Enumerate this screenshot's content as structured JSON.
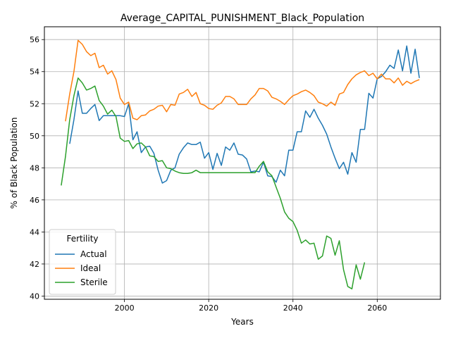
{
  "chart_data": {
    "type": "line",
    "title": "Average_CAPITAL_PUNISHMENT_Black_Population",
    "xlabel": "Years",
    "ylabel": "% of Black Population",
    "xlim": [
      1981,
      2075
    ],
    "ylim": [
      39.8,
      56.8
    ],
    "xticks": [
      2000,
      2020,
      2040,
      2060
    ],
    "yticks": [
      40,
      42,
      44,
      46,
      48,
      50,
      52,
      54,
      56
    ],
    "grid": true,
    "legend": {
      "title": "Fertility",
      "placement": "lower-left"
    },
    "series": [
      {
        "name": "Actual",
        "color": "#1f77b4",
        "x": [
          1987,
          1988,
          1989,
          1990,
          1991,
          1992,
          1993,
          1994,
          1995,
          1996,
          1997,
          1998,
          1999,
          2000,
          2001,
          2002,
          2003,
          2004,
          2005,
          2006,
          2007,
          2008,
          2009,
          2010,
          2011,
          2012,
          2013,
          2014,
          2015,
          2016,
          2017,
          2018,
          2019,
          2020,
          2021,
          2022,
          2023,
          2024,
          2025,
          2026,
          2027,
          2028,
          2029,
          2030,
          2031,
          2032,
          2033,
          2034,
          2035,
          2036,
          2037,
          2038,
          2039,
          2040,
          2041,
          2042,
          2043,
          2044,
          2045,
          2046,
          2047,
          2048,
          2049,
          2050,
          2051,
          2052,
          2053,
          2054,
          2055,
          2056,
          2057,
          2058,
          2059,
          2060,
          2061,
          2062,
          2063,
          2064,
          2065,
          2066,
          2067,
          2068,
          2069,
          2070
        ],
        "y": [
          49.5,
          51.0,
          52.8,
          51.4,
          51.4,
          51.7,
          51.95,
          50.95,
          51.25,
          51.25,
          51.25,
          51.25,
          51.25,
          51.2,
          52.0,
          49.75,
          50.25,
          48.95,
          49.3,
          49.35,
          48.9,
          47.85,
          47.05,
          47.2,
          47.85,
          48.0,
          48.85,
          49.25,
          49.55,
          49.45,
          49.45,
          49.6,
          48.6,
          48.95,
          47.9,
          48.9,
          48.15,
          49.3,
          49.1,
          49.55,
          48.85,
          48.8,
          48.55,
          47.75,
          47.8,
          47.75,
          48.35,
          47.5,
          47.45,
          47.1,
          47.85,
          47.5,
          49.1,
          49.1,
          50.25,
          50.25,
          51.55,
          51.15,
          51.65,
          51.1,
          50.65,
          50.1,
          49.3,
          48.6,
          47.95,
          48.35,
          47.6,
          48.95,
          48.35,
          50.4,
          50.4,
          52.65,
          52.35,
          53.55,
          53.7,
          54.0,
          54.4,
          54.2,
          55.35,
          54.05,
          55.6,
          53.9,
          55.4,
          53.6
        ]
      },
      {
        "name": "Ideal",
        "color": "#ff7f0e",
        "x": [
          1986,
          1987,
          1988,
          1989,
          1990,
          1991,
          1992,
          1993,
          1994,
          1995,
          1996,
          1997,
          1998,
          1999,
          2000,
          2001,
          2002,
          2003,
          2004,
          2005,
          2006,
          2007,
          2008,
          2009,
          2010,
          2011,
          2012,
          2013,
          2014,
          2015,
          2016,
          2017,
          2018,
          2019,
          2020,
          2021,
          2022,
          2023,
          2024,
          2025,
          2026,
          2027,
          2028,
          2029,
          2030,
          2031,
          2032,
          2033,
          2034,
          2035,
          2036,
          2037,
          2038,
          2039,
          2040,
          2041,
          2042,
          2043,
          2044,
          2045,
          2046,
          2047,
          2048,
          2049,
          2050,
          2051,
          2052,
          2053,
          2054,
          2055,
          2056,
          2057,
          2058,
          2059,
          2060,
          2061,
          2062,
          2063,
          2064,
          2065,
          2066,
          2067,
          2068,
          2069,
          2070
        ],
        "y": [
          50.9,
          52.6,
          54.0,
          55.95,
          55.7,
          55.25,
          55.0,
          55.15,
          54.25,
          54.4,
          53.85,
          54.05,
          53.5,
          52.35,
          51.95,
          52.1,
          51.1,
          51.0,
          51.25,
          51.3,
          51.55,
          51.65,
          51.85,
          51.9,
          51.5,
          51.95,
          51.9,
          52.6,
          52.7,
          52.9,
          52.45,
          52.7,
          52.0,
          51.9,
          51.7,
          51.65,
          51.9,
          52.05,
          52.45,
          52.45,
          52.3,
          51.95,
          51.95,
          51.95,
          52.3,
          52.55,
          52.95,
          52.95,
          52.8,
          52.4,
          52.3,
          52.15,
          51.95,
          52.25,
          52.5,
          52.6,
          52.75,
          52.85,
          52.7,
          52.5,
          52.1,
          52.0,
          51.85,
          52.1,
          51.9,
          52.6,
          52.7,
          53.2,
          53.55,
          53.8,
          53.95,
          54.05,
          53.75,
          53.9,
          53.55,
          53.85,
          53.55,
          53.55,
          53.3,
          53.6,
          53.15,
          53.4,
          53.25,
          53.4,
          53.5
        ]
      },
      {
        "name": "Sterile",
        "color": "#2ca02c",
        "x": [
          1985,
          1986,
          1987,
          1988,
          1989,
          1990,
          1991,
          1992,
          1993,
          1994,
          1995,
          1996,
          1997,
          1998,
          1999,
          2000,
          2001,
          2002,
          2003,
          2004,
          2005,
          2006,
          2007,
          2008,
          2009,
          2010,
          2011,
          2012,
          2013,
          2014,
          2015,
          2016,
          2017,
          2018,
          2019,
          2020,
          2021,
          2022,
          2023,
          2024,
          2025,
          2026,
          2027,
          2028,
          2029,
          2030,
          2031,
          2032,
          2033,
          2034,
          2035,
          2036,
          2037,
          2038,
          2039,
          2040,
          2041,
          2042,
          2043,
          2044,
          2045,
          2046,
          2047,
          2048,
          2049,
          2050,
          2051,
          2052,
          2053,
          2054,
          2055,
          2056,
          2057
        ],
        "y": [
          46.9,
          48.7,
          51.0,
          52.5,
          53.6,
          53.3,
          52.85,
          52.95,
          53.1,
          52.2,
          51.85,
          51.35,
          51.6,
          51.2,
          49.85,
          49.65,
          49.7,
          49.2,
          49.5,
          49.55,
          49.3,
          48.75,
          48.7,
          48.4,
          48.45,
          48.0,
          47.95,
          47.8,
          47.7,
          47.65,
          47.65,
          47.7,
          47.85,
          47.7,
          47.7,
          47.7,
          47.7,
          47.7,
          47.7,
          47.7,
          47.7,
          47.7,
          47.7,
          47.7,
          47.7,
          47.7,
          47.7,
          48.1,
          48.4,
          47.75,
          47.5,
          46.8,
          46.1,
          45.25,
          44.85,
          44.65,
          44.1,
          43.3,
          43.5,
          43.25,
          43.3,
          42.3,
          42.5,
          43.75,
          43.6,
          42.55,
          43.45,
          41.65,
          40.6,
          40.45,
          41.95,
          41.05,
          42.1
        ]
      }
    ]
  }
}
